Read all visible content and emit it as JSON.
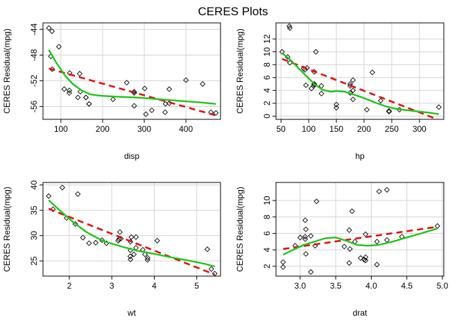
{
  "figure": {
    "title": "CERES Plots",
    "colors": {
      "points": "#000000",
      "smooth_line": "#22c41a",
      "linear_fit": "#e01010",
      "grid": "#d3d3d3"
    }
  },
  "chart_data": [
    {
      "type": "scatter",
      "xlabel": "disp",
      "ylabel": "CERES Residual(mpg)",
      "xlim": [
        57,
        483
      ],
      "ylim": [
        -58,
        -43
      ],
      "xticks": [
        100,
        200,
        300,
        400
      ],
      "yticks": [
        -56,
        -52,
        -48,
        -44
      ],
      "grid": true,
      "series": [
        {
          "kind": "points",
          "x": [
            71.1,
            75.7,
            78.7,
            79,
            95.1,
            108,
            120.1,
            120.3,
            121,
            140.8,
            145,
            146.7,
            160,
            160,
            167.6,
            167.6,
            225,
            258,
            275.8,
            275.8,
            275.8,
            301,
            304,
            318,
            350,
            351,
            360,
            360,
            400,
            440,
            460,
            472
          ],
          "y": [
            -43.8,
            -48.2,
            -44.3,
            -50.2,
            -46.7,
            -53.3,
            -53.9,
            -53.5,
            -50.8,
            -54.6,
            -50.9,
            -53.7,
            -54.6,
            -54.6,
            -55.6,
            -55.6,
            -54.9,
            -52.3,
            -53.7,
            -55.9,
            -53.9,
            -53.2,
            -57.2,
            -56.6,
            -56.9,
            -55.6,
            -53.3,
            -55.5,
            -51.9,
            -52.5,
            -56.9,
            -57.0
          ]
        },
        {
          "kind": "linear_fit",
          "x": [
            71.1,
            472
          ],
          "y": [
            -50.1,
            -57.4
          ]
        },
        {
          "kind": "smooth",
          "x": [
            71.1,
            90,
            110,
            130,
            150,
            170,
            190,
            210,
            240,
            280,
            320,
            360,
            400,
            440,
            472
          ],
          "y": [
            -47.2,
            -49.3,
            -51.2,
            -52.6,
            -53.5,
            -54.1,
            -54.3,
            -54.4,
            -54.5,
            -54.6,
            -54.8,
            -55.0,
            -55.2,
            -55.4,
            -55.6
          ]
        }
      ]
    },
    {
      "type": "scatter",
      "xlabel": "hp",
      "ylabel": "CERES Residual(mpg)",
      "xlim": [
        41,
        344
      ],
      "ylim": [
        -0.5,
        14.5
      ],
      "xticks": [
        50,
        100,
        150,
        200,
        250,
        300
      ],
      "yticks": [
        0,
        2,
        4,
        6,
        8,
        10,
        12
      ],
      "grid": true,
      "series": [
        {
          "kind": "points",
          "x": [
            52,
            62,
            65,
            66,
            66,
            91,
            93,
            95,
            97,
            105,
            109,
            110,
            110,
            110,
            113,
            123,
            123,
            150,
            150,
            175,
            175,
            175,
            180,
            180,
            180,
            205,
            215,
            230,
            245,
            245,
            264,
            335
          ],
          "y": [
            10.0,
            9.2,
            14.0,
            8.3,
            13.7,
            7.4,
            7.2,
            4.8,
            7.5,
            4.3,
            4.7,
            4.9,
            6.9,
            5.0,
            10.0,
            4.7,
            3.5,
            1.8,
            1.3,
            4.7,
            3.6,
            5.0,
            5.6,
            4.0,
            2.6,
            1.0,
            6.8,
            2.4,
            0.8,
            0.7,
            1.0,
            1.4
          ]
        },
        {
          "kind": "linear_fit",
          "x": [
            52,
            335
          ],
          "y": [
            8.9,
            -0.6
          ]
        },
        {
          "kind": "smooth",
          "x": [
            52,
            65,
            80,
            95,
            110,
            125,
            140,
            150,
            165,
            180,
            200,
            220,
            240,
            260,
            290,
            320,
            335
          ],
          "y": [
            9.8,
            8.9,
            7.6,
            6.3,
            5.0,
            4.1,
            3.8,
            3.9,
            3.8,
            3.4,
            2.8,
            2.1,
            1.5,
            1.1,
            0.8,
            0.5,
            0.3
          ]
        }
      ]
    },
    {
      "type": "scatter",
      "xlabel": "wt",
      "ylabel": "CERES Residual(mpg)",
      "xlim": [
        1.38,
        5.56
      ],
      "ylim": [
        22,
        40.5
      ],
      "xticks": [
        2,
        3,
        4,
        5
      ],
      "yticks": [
        25,
        30,
        35,
        40
      ],
      "grid": true,
      "series": [
        {
          "kind": "points",
          "x": [
            1.513,
            1.615,
            1.835,
            1.935,
            2.14,
            2.2,
            2.32,
            2.465,
            2.62,
            2.77,
            2.875,
            3.15,
            3.17,
            3.19,
            3.215,
            3.435,
            3.44,
            3.44,
            3.44,
            3.46,
            3.52,
            3.57,
            3.57,
            3.73,
            3.78,
            3.84,
            3.845,
            4.07,
            5.25,
            5.345,
            5.424
          ],
          "y": [
            37.8,
            35.2,
            39.5,
            33.5,
            32.3,
            38.2,
            29.6,
            28.5,
            28.6,
            29.1,
            28.5,
            29.0,
            29.3,
            30.7,
            29.4,
            25.9,
            28.8,
            27.1,
            25.3,
            29.7,
            26.3,
            29.7,
            27.6,
            27.2,
            26.3,
            25.2,
            25.6,
            29.0,
            27.3,
            23.4,
            22.5
          ]
        },
        {
          "kind": "linear_fit",
          "x": [
            1.513,
            5.424
          ],
          "y": [
            35.3,
            22.3
          ]
        },
        {
          "kind": "smooth",
          "x": [
            1.513,
            1.8,
            2.1,
            2.4,
            2.8,
            3.2,
            3.6,
            4.0,
            4.4,
            4.8,
            5.2,
            5.424
          ],
          "y": [
            37.0,
            34.8,
            32.6,
            30.7,
            28.9,
            27.9,
            27.0,
            26.4,
            25.7,
            25.1,
            24.4,
            23.9
          ]
        }
      ]
    },
    {
      "type": "scatter",
      "xlabel": "drat",
      "ylabel": "CERES Residual(mpg)",
      "xlim": [
        2.66,
        5.02
      ],
      "ylim": [
        0.8,
        12.2
      ],
      "xticks": [
        3.0,
        3.5,
        4.0,
        4.5,
        5.0
      ],
      "yticks": [
        2,
        4,
        6,
        8,
        10
      ],
      "grid": true,
      "series": [
        {
          "kind": "points",
          "x": [
            2.76,
            2.76,
            2.93,
            3.0,
            3.07,
            3.07,
            3.07,
            3.08,
            3.08,
            3.15,
            3.15,
            3.21,
            3.23,
            3.62,
            3.69,
            3.69,
            3.7,
            3.73,
            3.77,
            3.85,
            3.9,
            3.92,
            3.92,
            3.92,
            4.08,
            4.08,
            4.11,
            4.22,
            4.22,
            4.43,
            4.93
          ],
          "y": [
            2.5,
            1.9,
            4.5,
            5.5,
            5.6,
            5.3,
            7.6,
            3.5,
            6.5,
            5.7,
            1.3,
            4.5,
            9.9,
            4.4,
            6.4,
            2.4,
            4.1,
            8.7,
            5.0,
            3.0,
            2.8,
            2.7,
            3.1,
            5.9,
            2.2,
            5.0,
            11.1,
            11.3,
            5.2,
            5.6,
            6.9
          ]
        },
        {
          "kind": "linear_fit",
          "x": [
            2.76,
            4.93
          ],
          "y": [
            4.1,
            6.8
          ]
        },
        {
          "kind": "smooth",
          "x": [
            2.76,
            2.9,
            3.05,
            3.2,
            3.35,
            3.5,
            3.65,
            3.8,
            3.95,
            4.1,
            4.3,
            4.5,
            4.7,
            4.93
          ],
          "y": [
            3.4,
            4.0,
            4.6,
            5.0,
            5.4,
            5.5,
            5.1,
            4.6,
            4.5,
            4.6,
            5.0,
            5.5,
            6.0,
            6.6
          ]
        }
      ]
    }
  ]
}
